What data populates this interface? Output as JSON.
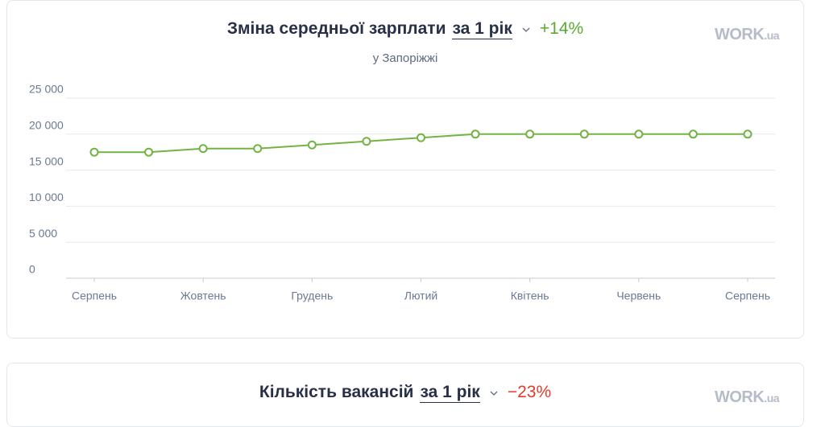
{
  "chart_data": {
    "type": "line",
    "title": "Зміна середньої зарплати",
    "period": "за 1 рік",
    "change": "+14%",
    "subtitle": "у Запоріжжі",
    "logo": {
      "main": "WORK",
      "suffix": ".ua"
    },
    "categories": [
      "Серпень",
      null,
      "Жовтень",
      null,
      "Грудень",
      null,
      "Лютий",
      null,
      "Квітень",
      null,
      "Червень",
      null,
      "Серпень"
    ],
    "values": [
      17500,
      17500,
      18000,
      18000,
      18500,
      19000,
      19500,
      20000,
      20000,
      20000,
      20000,
      20000,
      20000
    ],
    "color": "#72b343",
    "ylim": [
      0,
      25000
    ],
    "yticks": [
      0,
      {
        "value": 5000,
        "label": "5 000"
      },
      {
        "value": 10000,
        "label": "10 000"
      },
      {
        "value": 15000,
        "label": "15 000"
      },
      {
        "value": 20000,
        "label": "20 000"
      },
      {
        "value": 25000,
        "label": "25 000"
      }
    ],
    "grid": true
  },
  "second_card": {
    "title": "Кількість вакансій",
    "period": "за 1 рік",
    "change": "−23%",
    "logo": {
      "main": "WORK",
      "suffix": ".ua"
    }
  }
}
